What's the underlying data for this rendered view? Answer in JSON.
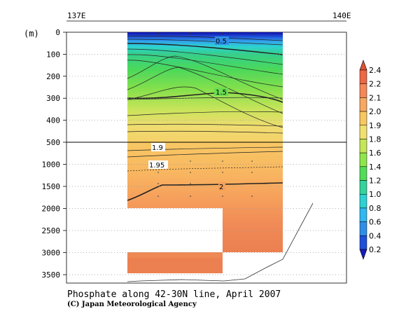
{
  "chart_data": {
    "type": "heatmap",
    "title": "Phosphate along 42-30N line, April 2007",
    "credit": "(C) Japan Meteorological Agency",
    "x_tick_labels": [
      "137E",
      "140E"
    ],
    "y_unit": "(m)",
    "y_ticks_upper": [
      0,
      100,
      200,
      300,
      400,
      500
    ],
    "y_ticks_lower": [
      1000,
      1500,
      2000,
      2500,
      3000,
      3500
    ],
    "contour_labels": [
      {
        "value": "0.5",
        "depth": 35
      },
      {
        "value": "1.5",
        "depth": 285
      },
      {
        "value": "1.9",
        "depth": 520
      },
      {
        "value": "1.95",
        "depth": 1000
      },
      {
        "value": "2",
        "depth": 1500
      }
    ],
    "colorbar": {
      "levels": [
        "0.2",
        "0.4",
        "0.6",
        "0.8",
        "1.0",
        "1.2",
        "1.4",
        "1.6",
        "1.8",
        "1.9",
        "2.0",
        "2.1",
        "2.2",
        "2.4"
      ],
      "colors": [
        "#1a1ab8",
        "#2050d8",
        "#2f8ee8",
        "#30b8f0",
        "#2ed2d2",
        "#34d49c",
        "#52dc58",
        "#8ee64c",
        "#c4e658",
        "#f0e070",
        "#f8c860",
        "#f8a860",
        "#f48858",
        "#ec6846",
        "#e05032"
      ]
    }
  }
}
